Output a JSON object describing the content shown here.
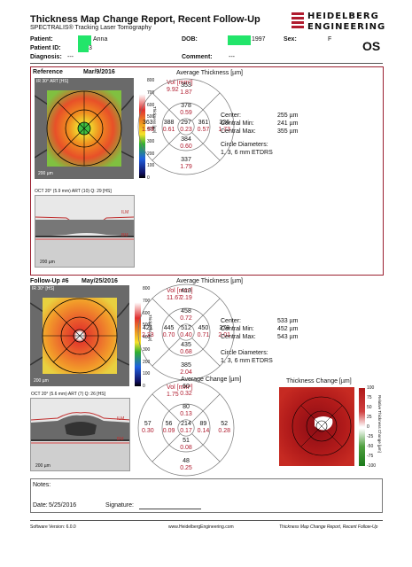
{
  "header": {
    "title": "Thickness Map Change Report, Recent Follow-Up",
    "subtitle": "SPECTRALIS® Tracking Laser Tomography",
    "logo_line1": "HEIDELBERG",
    "logo_line2": "ENGINEERING",
    "brand_color": "#b01b2e"
  },
  "patient": {
    "patient_label": "Patient:",
    "patient_name": "Anna",
    "patient_id_label": "Patient ID:",
    "patient_id_suffix": "3",
    "diagnosis_label": "Diagnosis:",
    "diagnosis_value": "---",
    "dob_label": "DOB:",
    "dob_year": "1997",
    "comment_label": "Comment:",
    "comment_value": "---",
    "sex_label": "Sex:",
    "sex_value": "F",
    "eye": "OS"
  },
  "reference": {
    "label": "Reference",
    "date": "Mar/9/2016",
    "ir_label": "IR 30° ART [HS]",
    "scale_ticks": [
      "800",
      "700",
      "600",
      "500",
      "400",
      "300",
      "200",
      "100",
      "0"
    ],
    "scale_unit": "Thickness [µm]",
    "fundus_scale": "200 µm",
    "oct_label": "OCT 20° (5.9 mm) ART (10) Q: 29 [HS]",
    "oct_scale": "200 µm",
    "ilm": "ILM",
    "bm": "BM",
    "chart_title": "Average Thickness [µm]",
    "vol_label": "Vol [mm³]",
    "vol_value": "9.92",
    "sectors": {
      "top_outer": [
        "353",
        "1.87"
      ],
      "top_inner": [
        "378",
        "0.59"
      ],
      "left_outer": [
        "363",
        "1.93"
      ],
      "left_inner": [
        "388",
        "0.61"
      ],
      "center": [
        "297",
        "0.23"
      ],
      "right_inner": [
        "361",
        "0.57"
      ],
      "right_outer": [
        "326",
        "1.73"
      ],
      "bottom_inner": [
        "384",
        "0.60"
      ],
      "bottom_outer": [
        "337",
        "1.79"
      ]
    },
    "center_label": "Center:",
    "center_value": "255 µm",
    "cmin_label": "Central Min:",
    "cmin_value": "241 µm",
    "cmax_label": "Central Max:",
    "cmax_value": "355 µm",
    "circle_label": "Circle Diameters:",
    "circle_value": "1, 3, 6 mm ETDRS"
  },
  "followup": {
    "label": "Follow-Up #6",
    "date": "May/25/2016",
    "ir_label": "IR 30° [HS]",
    "scale_ticks": [
      "800",
      "700",
      "600",
      "500",
      "400",
      "300",
      "200",
      "100",
      "0"
    ],
    "scale_unit": "Thickness [µm]",
    "fundus_scale": "200 µm",
    "oct_label": "OCT 20° (5.6 mm) ART (7) Q: 26 [HS]",
    "oct_scale": "200 µm",
    "ilm": "ILM",
    "bm": "BM",
    "chart_title": "Average Thickness [µm]",
    "vol_label": "Vol [mm³]",
    "vol_value": "11.67",
    "sectors": {
      "top_outer": [
        "413",
        "2.19"
      ],
      "top_inner": [
        "458",
        "0.72"
      ],
      "left_outer": [
        "421",
        "2.23"
      ],
      "left_inner": [
        "445",
        "0.70"
      ],
      "center": [
        "512",
        "0.40"
      ],
      "right_inner": [
        "450",
        "0.71"
      ],
      "right_outer": [
        "378",
        "2.01"
      ],
      "bottom_inner": [
        "435",
        "0.68"
      ],
      "bottom_outer": [
        "385",
        "2.04"
      ]
    },
    "center_label": "Center:",
    "center_value": "533 µm",
    "cmin_label": "Central Min:",
    "cmin_value": "452 µm",
    "cmax_label": "Central Max:",
    "cmax_value": "543 µm",
    "circle_label": "Circle Diameters:",
    "circle_value": "1, 3, 6 mm ETDRS"
  },
  "change": {
    "chart_title": "Average Change [µm]",
    "vol_label": "Vol [mm³]",
    "vol_value": "1.75",
    "sectors": {
      "top_outer": [
        "60",
        "0.32"
      ],
      "top_inner": [
        "80",
        "0.13"
      ],
      "left_outer": [
        "57",
        "0.30"
      ],
      "left_inner": [
        "56",
        "0.09"
      ],
      "center": [
        "214",
        "0.17"
      ],
      "right_inner": [
        "89",
        "0.14"
      ],
      "right_outer": [
        "52",
        "0.28"
      ],
      "bottom_inner": [
        "51",
        "0.08"
      ],
      "bottom_outer": [
        "48",
        "0.25"
      ]
    },
    "map_title": "Thickness Change [µm]",
    "scale_ticks": [
      "100",
      "75",
      "50",
      "25",
      "0",
      "-25",
      "-50",
      "-75",
      "-100"
    ],
    "scale_unit": "Relative Thickness Change [µm]"
  },
  "notes": {
    "label": "Notes:",
    "date_label": "Date:",
    "date_value": "5/25/2016",
    "signature_label": "Signature:"
  },
  "footer": {
    "software": "Software Version: 6.0.0",
    "url": "www.HeidelbergEngineering.com",
    "report": "Thickness Map Change Report, Recent Follow-Up"
  }
}
